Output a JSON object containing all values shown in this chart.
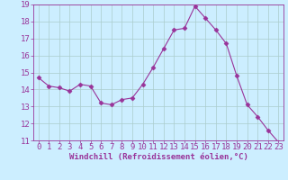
{
  "x": [
    0,
    1,
    2,
    3,
    4,
    5,
    6,
    7,
    8,
    9,
    10,
    11,
    12,
    13,
    14,
    15,
    16,
    17,
    18,
    19,
    20,
    21,
    22,
    23
  ],
  "y": [
    14.7,
    14.2,
    14.1,
    13.9,
    14.3,
    14.2,
    13.2,
    13.1,
    13.4,
    13.5,
    14.3,
    15.3,
    16.4,
    17.5,
    17.6,
    18.9,
    18.2,
    17.5,
    16.7,
    14.8,
    13.1,
    12.4,
    11.6,
    10.9
  ],
  "line_color": "#993399",
  "marker": "D",
  "marker_size": 2.5,
  "bg_color": "#cceeff",
  "grid_color": "#aacccc",
  "xlabel": "Windchill (Refroidissement éolien,°C)",
  "ylabel": "",
  "ylim": [
    11,
    19
  ],
  "xlim": [
    -0.5,
    23.5
  ],
  "yticks": [
    11,
    12,
    13,
    14,
    15,
    16,
    17,
    18,
    19
  ],
  "xticks": [
    0,
    1,
    2,
    3,
    4,
    5,
    6,
    7,
    8,
    9,
    10,
    11,
    12,
    13,
    14,
    15,
    16,
    17,
    18,
    19,
    20,
    21,
    22,
    23
  ],
  "tick_color": "#993399",
  "label_color": "#993399",
  "xlabel_fontsize": 6.5,
  "tick_fontsize": 6.5
}
